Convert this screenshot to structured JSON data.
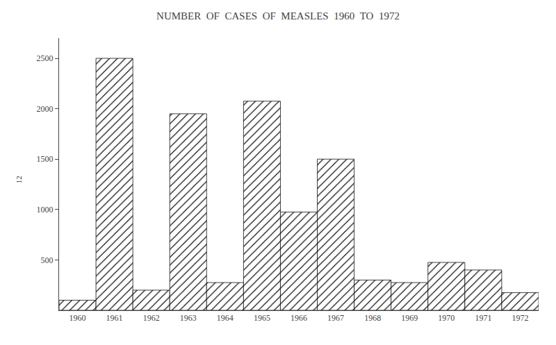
{
  "chart_data": {
    "type": "bar",
    "title": "NUMBER  OF  CASES  OF  MEASLES  1960  TO  1972",
    "categories": [
      "1960",
      "1961",
      "1962",
      "1963",
      "1964",
      "1965",
      "1966",
      "1967",
      "1968",
      "1969",
      "1970",
      "1971",
      "1972"
    ],
    "values": [
      100,
      2500,
      200,
      1950,
      275,
      2075,
      975,
      1500,
      300,
      275,
      475,
      400,
      175
    ],
    "color": "#ffffff",
    "ylim": [
      0,
      2700
    ],
    "yticks": [
      500,
      1000,
      1500,
      2000,
      2500
    ],
    "grid": false,
    "annotations": [
      "12"
    ]
  }
}
